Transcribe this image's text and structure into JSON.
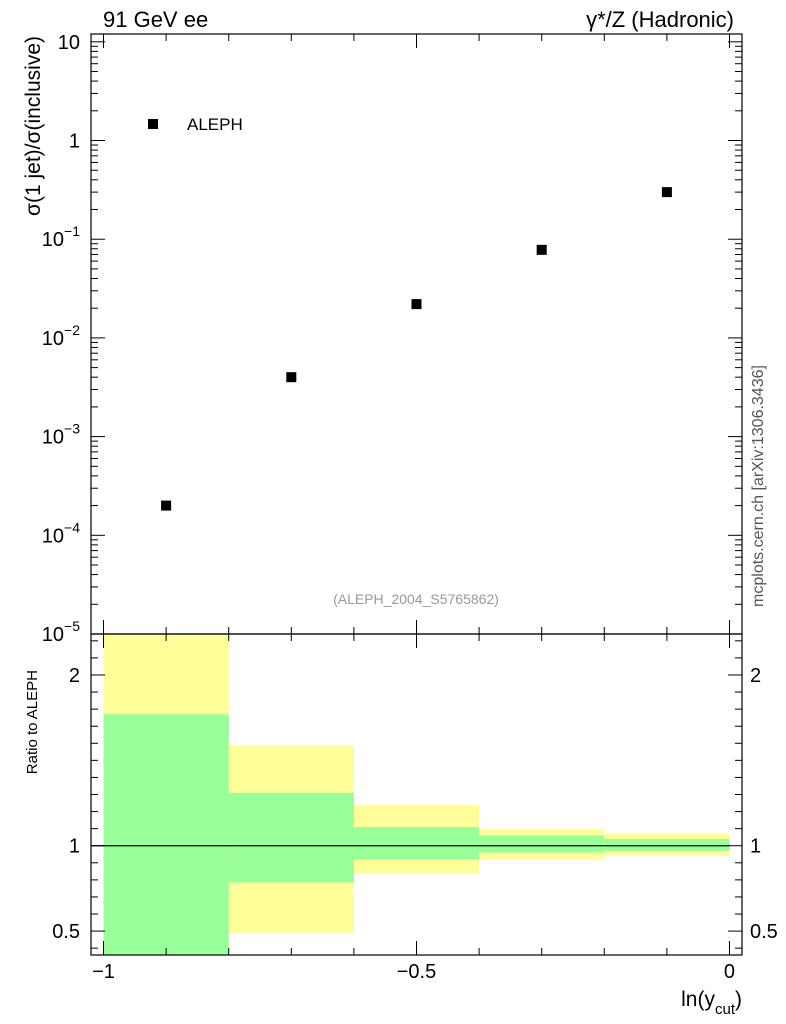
{
  "header": {
    "left": "91 GeV ee",
    "right": "γ*/Z (Hadronic)"
  },
  "side_label": "mcplots.cern.ch [arXiv:1306.3436]",
  "analysis_id": "(ALEPH_2004_S5765862)",
  "chart_data": [
    {
      "type": "scatter",
      "title": "",
      "xlabel": "",
      "ylabel": "σ(1 jet)/σ(inclusive)",
      "yscale": "log",
      "xlim": [
        -1.02,
        0.02
      ],
      "ylim": [
        1e-05,
        12
      ],
      "y_ticks": [
        {
          "value": 1e-05,
          "base": "10",
          "exp": "−5"
        },
        {
          "value": 0.0001,
          "base": "10",
          "exp": "−4"
        },
        {
          "value": 0.001,
          "base": "10",
          "exp": "−3"
        },
        {
          "value": 0.01,
          "base": "10",
          "exp": "−2"
        },
        {
          "value": 0.1,
          "base": "10",
          "exp": "−1"
        },
        {
          "value": 1,
          "base": "1",
          "exp": ""
        },
        {
          "value": 10,
          "base": "10",
          "exp": ""
        }
      ],
      "legend": {
        "placement": "top-left",
        "entries": [
          "ALEPH"
        ]
      },
      "series": [
        {
          "name": "ALEPH",
          "color": "#000000",
          "x": [
            -0.9,
            -0.7,
            -0.5,
            -0.3,
            -0.1
          ],
          "y": [
            0.0002,
            0.004,
            0.022,
            0.078,
            0.3
          ]
        }
      ]
    },
    {
      "type": "area",
      "title": "",
      "xlabel": "ln(y_cut)",
      "xlabel_base": "ln(y",
      "xlabel_sub": "cut",
      "xlabel_end": ")",
      "ylabel": "Ratio to ALEPH",
      "xlim": [
        -1.02,
        0.02
      ],
      "ylim": [
        0.36,
        2.24
      ],
      "x_ticks": [
        {
          "value": -1,
          "label": "−1"
        },
        {
          "value": -0.5,
          "label": "−0.5"
        },
        {
          "value": 0,
          "label": "0"
        }
      ],
      "y_ticks": [
        {
          "value": 0.5,
          "label": "0.5"
        },
        {
          "value": 1,
          "label": "1"
        },
        {
          "value": 2,
          "label": "2"
        }
      ],
      "reference_line": 1,
      "bands": [
        {
          "color": "#ffff99",
          "bins": [
            {
              "x0": -1.0,
              "x1": -0.8,
              "lo": 0.36,
              "hi": 2.24
            },
            {
              "x0": -0.8,
              "x1": -0.6,
              "lo": 0.49,
              "hi": 1.59
            },
            {
              "x0": -0.6,
              "x1": -0.4,
              "lo": 0.84,
              "hi": 1.24
            },
            {
              "x0": -0.4,
              "x1": -0.2,
              "lo": 0.92,
              "hi": 1.1
            },
            {
              "x0": -0.2,
              "x1": 0.0,
              "lo": 0.94,
              "hi": 1.07
            }
          ]
        },
        {
          "color": "#99ff99",
          "bins": [
            {
              "x0": -1.0,
              "x1": -0.8,
              "lo": 0.36,
              "hi": 1.77
            },
            {
              "x0": -0.8,
              "x1": -0.6,
              "lo": 0.785,
              "hi": 1.31
            },
            {
              "x0": -0.6,
              "x1": -0.4,
              "lo": 0.92,
              "hi": 1.11
            },
            {
              "x0": -0.4,
              "x1": -0.2,
              "lo": 0.96,
              "hi": 1.06
            },
            {
              "x0": -0.2,
              "x1": 0.0,
              "lo": 0.97,
              "hi": 1.04
            }
          ]
        }
      ]
    }
  ]
}
